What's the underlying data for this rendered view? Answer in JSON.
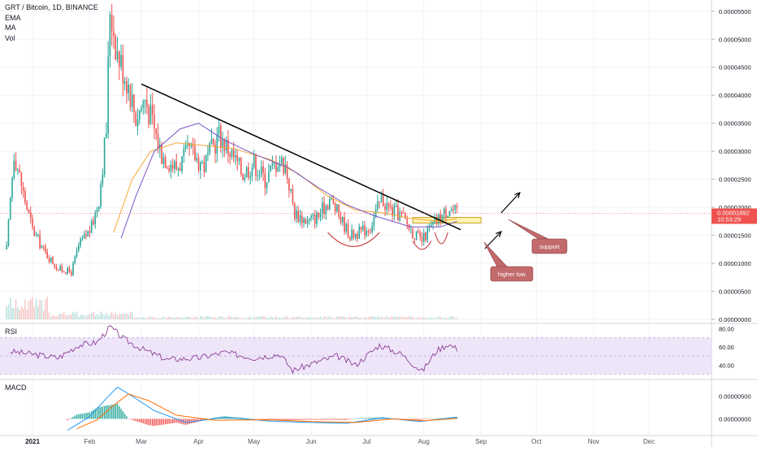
{
  "chart_data": {
    "type": "candlestick",
    "title": "GRT / Bitcoin, 1D, BINANCE",
    "indicators": [
      "EMA",
      "MA",
      "Vol"
    ],
    "last_price": "0.00001892",
    "countdown": "10:53:29",
    "x_ticks": [
      "2021",
      "Feb",
      "Mar",
      "Apr",
      "May",
      "Jun",
      "Jul",
      "Aug",
      "Sep",
      "Oct",
      "Nov",
      "Dec"
    ],
    "y_ticks": [
      "0.00005500",
      "0.00005000",
      "0.00004500",
      "0.00004000",
      "0.00003500",
      "0.00003000",
      "0.00002500",
      "0.00002000",
      "0.00001500",
      "0.00001000",
      "0.00000500",
      "0.00000000"
    ],
    "y_range": [
      0,
      5.7e-05
    ],
    "close_series": [
      {
        "date": "2020-12-18",
        "price": 1.25e-05
      },
      {
        "date": "2020-12-22",
        "price": 3e-05
      },
      {
        "date": "2020-12-27",
        "price": 2.25e-05
      },
      {
        "date": "2021-01-01",
        "price": 1.6e-05
      },
      {
        "date": "2021-01-08",
        "price": 1.18e-05
      },
      {
        "date": "2021-01-15",
        "price": 9e-06
      },
      {
        "date": "2021-01-22",
        "price": 8.4e-06
      },
      {
        "date": "2021-01-26",
        "price": 1.3e-05
      },
      {
        "date": "2021-02-02",
        "price": 1.65e-05
      },
      {
        "date": "2021-02-06",
        "price": 2.15e-05
      },
      {
        "date": "2021-02-10",
        "price": 3.4e-05
      },
      {
        "date": "2021-02-12",
        "price": 5.6e-05
      },
      {
        "date": "2021-02-16",
        "price": 4.75e-05
      },
      {
        "date": "2021-02-22",
        "price": 4.2e-05
      },
      {
        "date": "2021-02-26",
        "price": 3.6e-05
      },
      {
        "date": "2021-03-03",
        "price": 3.95e-05
      },
      {
        "date": "2021-03-08",
        "price": 3.4e-05
      },
      {
        "date": "2021-03-12",
        "price": 2.95e-05
      },
      {
        "date": "2021-03-20",
        "price": 2.7e-05
      },
      {
        "date": "2021-03-27",
        "price": 3e-05
      },
      {
        "date": "2021-04-04",
        "price": 2.75e-05
      },
      {
        "date": "2021-04-12",
        "price": 3.3e-05
      },
      {
        "date": "2021-04-18",
        "price": 3e-05
      },
      {
        "date": "2021-04-25",
        "price": 2.6e-05
      },
      {
        "date": "2021-05-01",
        "price": 2.8e-05
      },
      {
        "date": "2021-05-07",
        "price": 2.5e-05
      },
      {
        "date": "2021-05-14",
        "price": 2.85e-05
      },
      {
        "date": "2021-05-18",
        "price": 2.75e-05
      },
      {
        "date": "2021-05-23",
        "price": 1.9e-05
      },
      {
        "date": "2021-05-30",
        "price": 1.75e-05
      },
      {
        "date": "2021-06-05",
        "price": 1.85e-05
      },
      {
        "date": "2021-06-11",
        "price": 2.15e-05
      },
      {
        "date": "2021-06-17",
        "price": 1.8e-05
      },
      {
        "date": "2021-06-22",
        "price": 1.5e-05
      },
      {
        "date": "2021-06-27",
        "price": 1.55e-05
      },
      {
        "date": "2021-07-03",
        "price": 1.65e-05
      },
      {
        "date": "2021-07-09",
        "price": 2.15e-05
      },
      {
        "date": "2021-07-14",
        "price": 1.95e-05
      },
      {
        "date": "2021-07-20",
        "price": 1.85e-05
      },
      {
        "date": "2021-07-26",
        "price": 1.55e-05
      },
      {
        "date": "2021-07-31",
        "price": 1.4e-05
      },
      {
        "date": "2021-08-04",
        "price": 1.6e-05
      },
      {
        "date": "2021-08-08",
        "price": 1.75e-05
      },
      {
        "date": "2021-08-12",
        "price": 1.9e-05
      },
      {
        "date": "2021-08-15",
        "price": 2e-05
      },
      {
        "date": "2021-08-19",
        "price": 1.89e-05
      }
    ],
    "ema_series": [
      {
        "date": "2021-02-14",
        "price": 1.55e-05
      },
      {
        "date": "2021-02-24",
        "price": 2.5e-05
      },
      {
        "date": "2021-03-06",
        "price": 3e-05
      },
      {
        "date": "2021-03-20",
        "price": 3.15e-05
      },
      {
        "date": "2021-04-05",
        "price": 3.1e-05
      },
      {
        "date": "2021-04-20",
        "price": 3.05e-05
      },
      {
        "date": "2021-05-10",
        "price": 2.85e-05
      },
      {
        "date": "2021-05-25",
        "price": 2.6e-05
      },
      {
        "date": "2021-06-10",
        "price": 2.2e-05
      },
      {
        "date": "2021-06-25",
        "price": 1.95e-05
      },
      {
        "date": "2021-07-10",
        "price": 1.9e-05
      },
      {
        "date": "2021-07-25",
        "price": 1.8e-05
      },
      {
        "date": "2021-08-10",
        "price": 1.75e-05
      },
      {
        "date": "2021-08-19",
        "price": 1.8e-05
      }
    ],
    "ma_series": [
      {
        "date": "2021-02-18",
        "price": 1.45e-05
      },
      {
        "date": "2021-02-26",
        "price": 2.2e-05
      },
      {
        "date": "2021-03-08",
        "price": 3e-05
      },
      {
        "date": "2021-03-22",
        "price": 3.4e-05
      },
      {
        "date": "2021-04-01",
        "price": 3.5e-05
      },
      {
        "date": "2021-04-15",
        "price": 3.2e-05
      },
      {
        "date": "2021-05-01",
        "price": 2.95e-05
      },
      {
        "date": "2021-05-20",
        "price": 2.7e-05
      },
      {
        "date": "2021-06-05",
        "price": 2.35e-05
      },
      {
        "date": "2021-06-20",
        "price": 2.05e-05
      },
      {
        "date": "2021-07-05",
        "price": 1.85e-05
      },
      {
        "date": "2021-07-25",
        "price": 1.65e-05
      },
      {
        "date": "2021-08-10",
        "price": 1.65e-05
      },
      {
        "date": "2021-08-19",
        "price": 1.75e-05
      }
    ],
    "trendline": [
      {
        "date": "2021-03-01",
        "price": 4.2e-05
      },
      {
        "date": "2021-08-21",
        "price": 1.6e-05
      }
    ],
    "support_zone": {
      "from_date": "2021-07-26",
      "to_date": "2021-09-01",
      "low": 1.72e-05,
      "high": 1.82e-05
    },
    "annotations": {
      "support": "support",
      "higher_low": "higher low"
    },
    "rsi": {
      "label": "RSI",
      "y_ticks": [
        "80.00",
        "60.00",
        "40.00"
      ],
      "y_range": [
        25,
        85
      ],
      "band": [
        30,
        70
      ],
      "series": [
        {
          "date": "2020-12-20",
          "value": 55
        },
        {
          "date": "2021-01-01",
          "value": 52
        },
        {
          "date": "2021-01-15",
          "value": 48
        },
        {
          "date": "2021-01-26",
          "value": 62
        },
        {
          "date": "2021-02-05",
          "value": 65
        },
        {
          "date": "2021-02-12",
          "value": 82
        },
        {
          "date": "2021-02-20",
          "value": 68
        },
        {
          "date": "2021-03-01",
          "value": 58
        },
        {
          "date": "2021-03-15",
          "value": 46
        },
        {
          "date": "2021-04-01",
          "value": 48
        },
        {
          "date": "2021-04-15",
          "value": 54
        },
        {
          "date": "2021-05-01",
          "value": 48
        },
        {
          "date": "2021-05-15",
          "value": 52
        },
        {
          "date": "2021-05-22",
          "value": 34
        },
        {
          "date": "2021-06-05",
          "value": 44
        },
        {
          "date": "2021-06-15",
          "value": 50
        },
        {
          "date": "2021-06-25",
          "value": 40
        },
        {
          "date": "2021-07-08",
          "value": 62
        },
        {
          "date": "2021-07-20",
          "value": 52
        },
        {
          "date": "2021-07-31",
          "value": 33
        },
        {
          "date": "2021-08-08",
          "value": 56
        },
        {
          "date": "2021-08-14",
          "value": 63
        },
        {
          "date": "2021-08-19",
          "value": 58
        }
      ]
    },
    "macd": {
      "label": "MACD",
      "y_ticks": [
        "0.00000500",
        "0.00000000"
      ],
      "y_range": [
        -3.5e-06,
        8.5e-06
      ],
      "macd_series": [
        {
          "date": "2021-01-20",
          "value": -2.5e-06
        },
        {
          "date": "2021-02-01",
          "value": 5e-07
        },
        {
          "date": "2021-02-10",
          "value": 4.5e-06
        },
        {
          "date": "2021-02-16",
          "value": 7e-06
        },
        {
          "date": "2021-02-24",
          "value": 5e-06
        },
        {
          "date": "2021-03-08",
          "value": 1.8e-06
        },
        {
          "date": "2021-03-25",
          "value": -8e-07
        },
        {
          "date": "2021-04-15",
          "value": 3e-07
        },
        {
          "date": "2021-05-10",
          "value": -5e-07
        },
        {
          "date": "2021-06-01",
          "value": -8e-07
        },
        {
          "date": "2021-06-20",
          "value": -1e-06
        },
        {
          "date": "2021-07-10",
          "value": 2e-07
        },
        {
          "date": "2021-07-30",
          "value": -6e-07
        },
        {
          "date": "2021-08-19",
          "value": 4e-07
        }
      ],
      "signal_series": [
        {
          "date": "2021-01-25",
          "value": -2.2e-06
        },
        {
          "date": "2021-02-05",
          "value": -2e-07
        },
        {
          "date": "2021-02-14",
          "value": 3e-06
        },
        {
          "date": "2021-02-22",
          "value": 5.5e-06
        },
        {
          "date": "2021-03-05",
          "value": 4e-06
        },
        {
          "date": "2021-03-20",
          "value": 8e-07
        },
        {
          "date": "2021-04-10",
          "value": -3e-07
        },
        {
          "date": "2021-05-10",
          "value": -2e-07
        },
        {
          "date": "2021-06-01",
          "value": -6e-07
        },
        {
          "date": "2021-06-25",
          "value": -8e-07
        },
        {
          "date": "2021-07-15",
          "value": 0.0
        },
        {
          "date": "2021-08-01",
          "value": -4e-07
        },
        {
          "date": "2021-08-19",
          "value": 1e-07
        }
      ]
    },
    "colors": {
      "up": "#26a69a",
      "down": "#ef5350",
      "ema": "#f7a738",
      "ma": "#7b52c4",
      "rsi_line": "#8e3f96",
      "rsi_band": "#e8dcf7",
      "macd_line": "#2196f3",
      "signal_line": "#ff6d00",
      "trendline": "#000000",
      "support_zone": "#fff3b0",
      "annotation_box": "#c26a6c",
      "price_label": "#ef5350"
    }
  }
}
